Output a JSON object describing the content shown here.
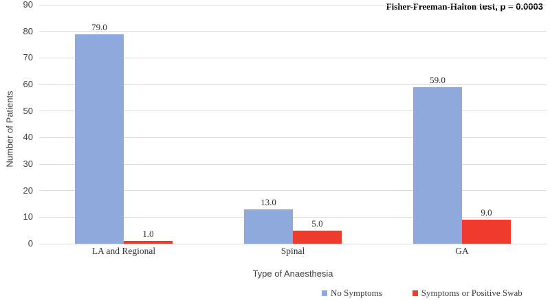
{
  "chart_data": {
    "type": "bar",
    "title": "",
    "xlabel": "Type of Anaesthesia",
    "ylabel": "Number of Patients",
    "categories": [
      "LA and Regional",
      "Spinal",
      "GA"
    ],
    "series": [
      {
        "name": "No Symptoms",
        "color": "#8EA9DB",
        "values": [
          79.0,
          13.0,
          59.0
        ]
      },
      {
        "name": "Symptoms or Positive Swab",
        "color": "#EE3B2E",
        "values": [
          1.0,
          5.0,
          9.0
        ]
      }
    ],
    "ylim": [
      0,
      90
    ],
    "ytick_step": 10,
    "grid": true,
    "legend_position": "bottom-right",
    "value_labels": "one_decimal",
    "annotation": {
      "serif_part": "Fisher-Freeman-Halton",
      "sans_part": "test, p = 0.0003"
    }
  },
  "colors": {
    "gridline": "#DCDCDC",
    "axis_text": "#3F3F3F",
    "label_text": "#2B2B2B"
  }
}
